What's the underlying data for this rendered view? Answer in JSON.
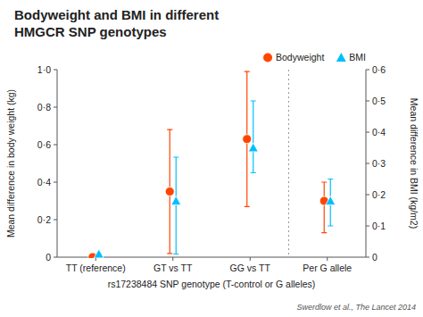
{
  "chart_data": {
    "type": "scatter",
    "title": "Bodyweight and BMI in different\nHMGCR SNP genotypes",
    "xlabel": "rs17238484 SNP genotype (T-control or G alleles)",
    "ylabel": "Mean difference in body weight (kg)",
    "y2label": "Mean difference in BMI (kg/m2)",
    "annotations": [
      "Swerdlow et al., The Lancet 2014"
    ],
    "categories": [
      "TT (reference)",
      "GT vs TT",
      "GG vs TT",
      "Per G allele"
    ],
    "series": [
      {
        "name": "Bodyweight",
        "color": "#FF4500",
        "marker": "circle",
        "values": [
          0.0,
          0.35,
          0.63,
          0.3
        ],
        "ci_low": [
          0.0,
          0.02,
          0.27,
          0.13
        ],
        "ci_high": [
          0.0,
          0.68,
          0.99,
          0.4
        ]
      },
      {
        "name": "BMI",
        "color": "#00BFFF",
        "marker": "triangle",
        "axis": "y2",
        "values": [
          0.01,
          0.18,
          0.35,
          0.18
        ],
        "ci_low": [
          0.01,
          0.01,
          0.27,
          0.1
        ],
        "ci_high": [
          0.01,
          0.32,
          0.5,
          0.25
        ]
      }
    ],
    "ylim": [
      0,
      1.0
    ],
    "yticks": [
      0,
      {
        "value": 0.2,
        "label": "0·2"
      },
      {
        "value": 0.4,
        "label": "0·4"
      },
      {
        "value": 0.6,
        "label": "0·6"
      },
      {
        "value": 0.8,
        "label": "0·8"
      },
      {
        "value": 1.0,
        "label": "1·0"
      }
    ],
    "y2lim": [
      0,
      0.6
    ],
    "y2ticks": [
      0,
      {
        "value": 0.1,
        "label": "0·1"
      },
      {
        "value": 0.2,
        "label": "0·2"
      },
      {
        "value": 0.3,
        "label": "0·3"
      },
      {
        "value": 0.4,
        "label": "0·4"
      },
      {
        "value": 0.5,
        "label": "0·5"
      },
      {
        "value": 0.6,
        "label": "0·6"
      }
    ],
    "grid": false,
    "legend": "upper right"
  }
}
